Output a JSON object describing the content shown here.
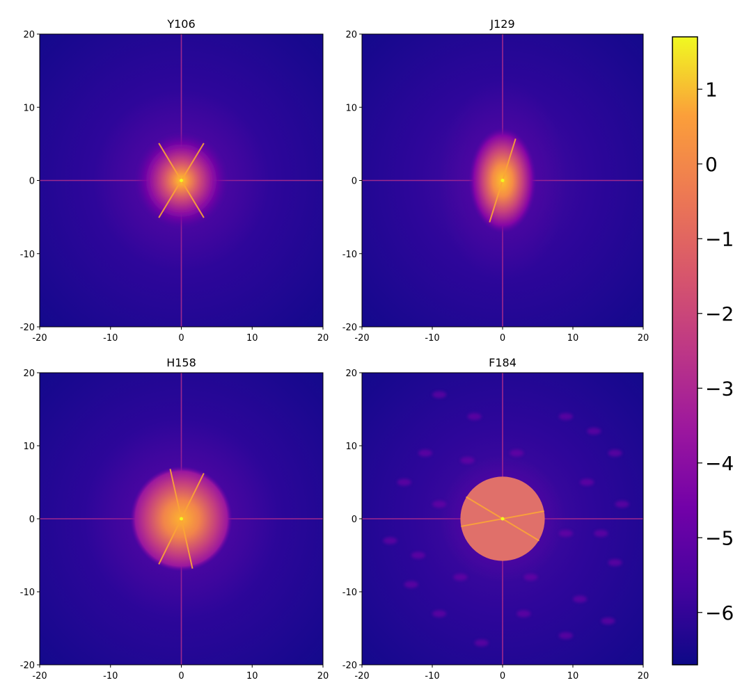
{
  "chart_data": {
    "type": "heatmap",
    "colormap": "plasma",
    "panels": [
      {
        "title": "Y106",
        "xlim": [
          -20,
          20
        ],
        "ylim": [
          -20,
          20
        ],
        "xticks": [
          -20,
          -10,
          0,
          10,
          20
        ],
        "yticks": [
          -20,
          -10,
          0,
          10,
          20
        ],
        "xtick_labels": [
          "-20",
          "-10",
          "0",
          "10",
          "20"
        ],
        "ytick_labels": [
          "20",
          "10",
          "0",
          "-10",
          "-20"
        ],
        "pattern": "diffuse-star",
        "peak_value": 1.7,
        "background_value": -6.5,
        "streak_angles_deg": [
          58,
          122
        ]
      },
      {
        "title": "J129",
        "xlim": [
          -20,
          20
        ],
        "ylim": [
          -20,
          20
        ],
        "xticks": [
          -20,
          -10,
          0,
          10,
          20
        ],
        "yticks": [
          -20,
          -10,
          0,
          10,
          20
        ],
        "xtick_labels": [
          "-20",
          "-10",
          "0",
          "10",
          "20"
        ],
        "ytick_labels": [
          "20",
          "10",
          "0",
          "-10",
          "-20"
        ],
        "pattern": "elliptical-blob",
        "peak_value": 1.7,
        "background_value": -6.5,
        "streak_angles_deg": [
          72
        ]
      },
      {
        "title": "H158",
        "xlim": [
          -20,
          20
        ],
        "ylim": [
          -20,
          20
        ],
        "xticks": [
          -20,
          -10,
          0,
          10,
          20
        ],
        "yticks": [
          -20,
          -10,
          0,
          10,
          20
        ],
        "xtick_labels": [
          "-20",
          "-10",
          "0",
          "10",
          "20"
        ],
        "ytick_labels": [
          "20",
          "10",
          "0",
          "-10",
          "-20"
        ],
        "pattern": "disk-with-streaks",
        "peak_value": 1.7,
        "background_value": -6.5,
        "streak_angles_deg": [
          63,
          103
        ]
      },
      {
        "title": "F184",
        "xlim": [
          -20,
          20
        ],
        "ylim": [
          -20,
          20
        ],
        "xticks": [
          -20,
          -10,
          0,
          10,
          20
        ],
        "yticks": [
          -20,
          -10,
          0,
          10,
          20
        ],
        "xtick_labels": [
          "-20",
          "-10",
          "0",
          "10",
          "20"
        ],
        "ytick_labels": [
          "20",
          "10",
          "0",
          "-10",
          "-20"
        ],
        "pattern": "uniform-disk",
        "disk_radius": 6,
        "disk_value": -1.8,
        "peak_value": 0.5,
        "background_value": -6.5,
        "streak_angles_deg": [
          10,
          150
        ]
      }
    ],
    "colorbar": {
      "min": -6.7,
      "max": 1.7,
      "ticks": [
        1,
        0,
        -1,
        -2,
        -3,
        -4,
        -5,
        -6
      ],
      "tick_labels": [
        "1",
        "0",
        "−1",
        "−2",
        "−3",
        "−4",
        "−5",
        "−6"
      ]
    }
  }
}
